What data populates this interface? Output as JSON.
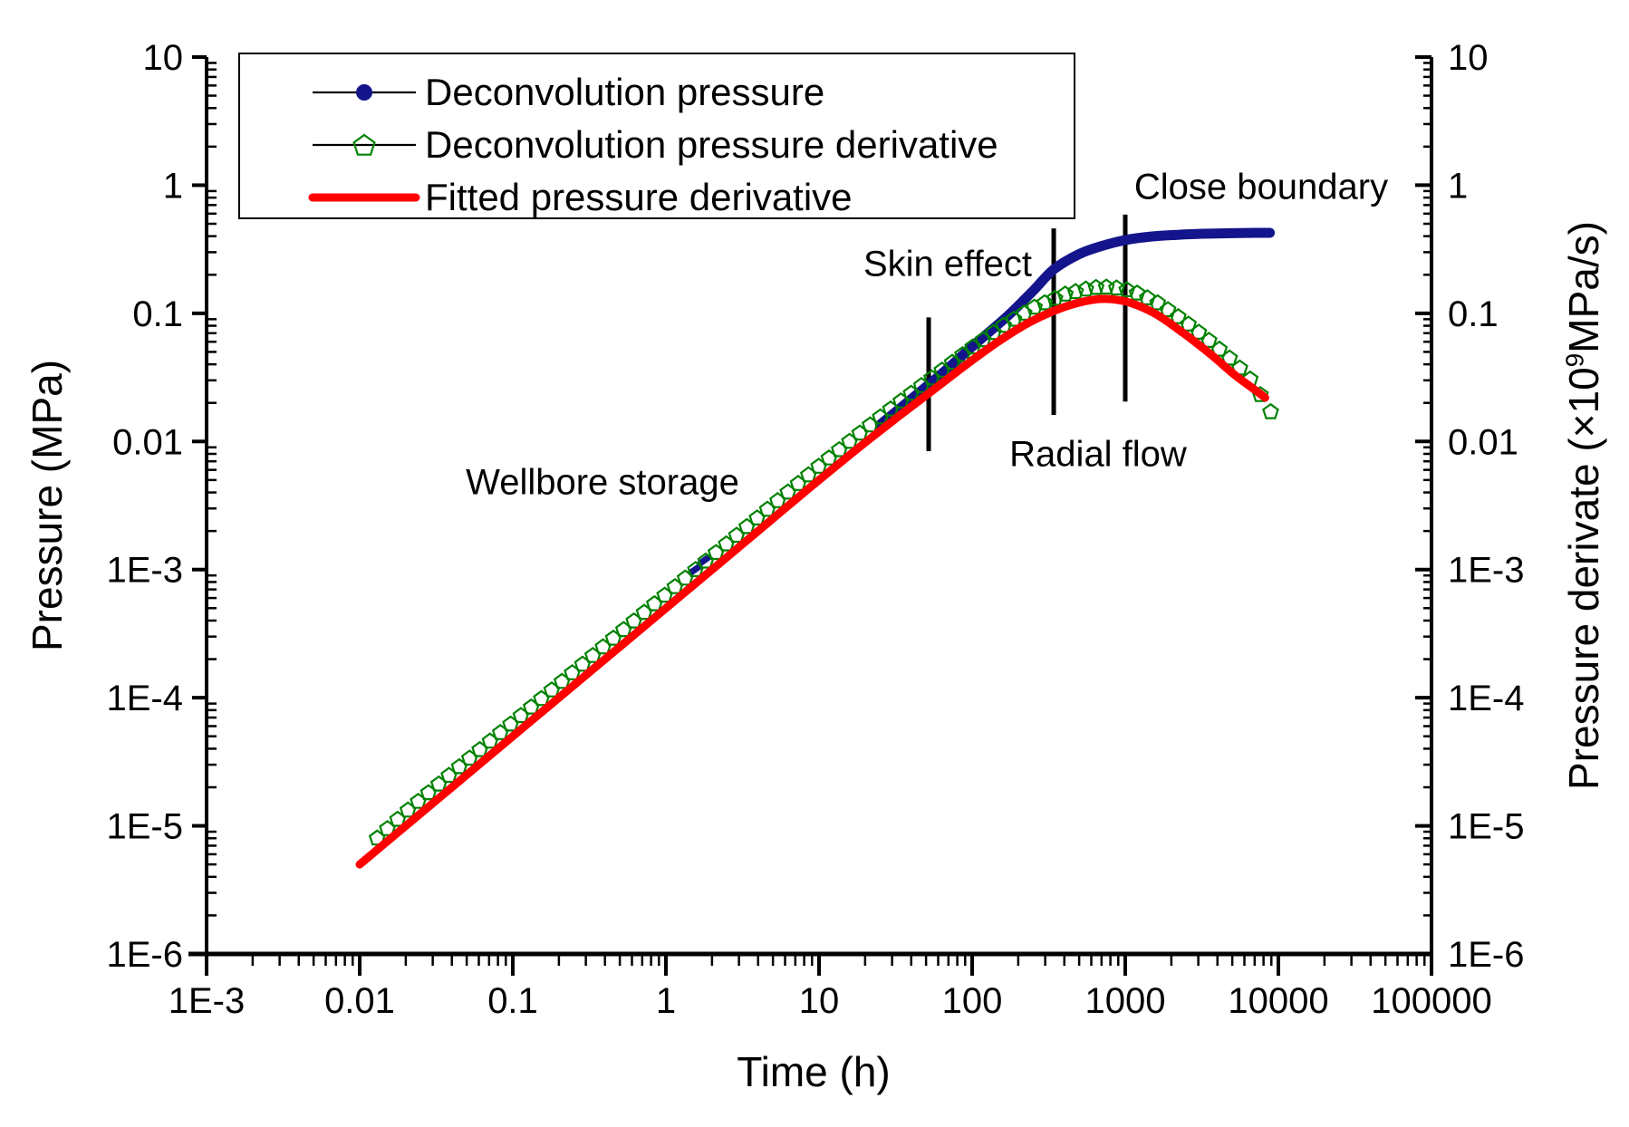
{
  "chart_data": {
    "type": "line",
    "title": "",
    "xlabel": "Time (h)",
    "ylabel_left": "Pressure (MPa)",
    "ylabel_right": {
      "pre": "Pressure derivate (×10",
      "sup": "9",
      "post": "MPa/s)"
    },
    "axes": {
      "x_log_range": [
        -3,
        5
      ],
      "y_log_range": [
        -6,
        1
      ],
      "x_ticks": [
        "1E-3",
        "0.01",
        "0.1",
        "1",
        "10",
        "100",
        "1000",
        "10000",
        "100000"
      ],
      "y_ticks_left": [
        "10",
        "1",
        "0.1",
        "0.01",
        "1E-3",
        "1E-4",
        "1E-5",
        "1E-6"
      ],
      "y_ticks_right": [
        "10",
        "1",
        "0.1",
        "0.01",
        "1E-3",
        "1E-4",
        "1E-5",
        "1E-6"
      ],
      "grid": false
    },
    "colors": {
      "pressure": "#14148C",
      "derivative": "#008200",
      "fitted": "#FF0000",
      "axis": "#000000"
    },
    "legend": {
      "position": "top-left",
      "entries": [
        {
          "label": "Deconvolution pressure",
          "marker": "dot-icon",
          "color": "#14148C"
        },
        {
          "label": "Deconvolution pressure derivative",
          "marker": "pentagon-icon",
          "color": "#008200"
        },
        {
          "label": "Fitted pressure derivative",
          "marker": "line-icon",
          "color": "#FF0000"
        }
      ]
    },
    "annotations": [
      {
        "label": "Wellbore storage",
        "t": 0.385,
        "v": 0.00475
      },
      {
        "label": "Skin effect",
        "t": 69,
        "v": 0.236
      },
      {
        "label": "Radial flow",
        "t": 665,
        "v": 0.0079
      },
      {
        "label": "Close boundary",
        "t": 7700,
        "v": 0.96
      }
    ],
    "boundary_lines": [
      {
        "t": 52,
        "v_bottom": 0.0084,
        "v_top": 0.093
      },
      {
        "t": 341,
        "v_bottom": 0.0161,
        "v_top": 0.46
      },
      {
        "t": 1000,
        "v_bottom": 0.0205,
        "v_top": 0.59
      }
    ],
    "series": [
      {
        "name": "Deconvolution pressure",
        "style": "thick-dotline",
        "color": "#14148C",
        "isolated_dashes": [
          [
            1.55,
            0.001
          ],
          [
            1.78,
            0.00118
          ]
        ],
        "points": [
          [
            25,
            0.0135
          ],
          [
            60,
            0.032
          ],
          [
            100,
            0.055
          ],
          [
            170,
            0.095
          ],
          [
            250,
            0.15
          ],
          [
            341,
            0.22
          ],
          [
            500,
            0.29
          ],
          [
            700,
            0.335
          ],
          [
            1000,
            0.373
          ],
          [
            1500,
            0.398
          ],
          [
            2200,
            0.41
          ],
          [
            3200,
            0.418
          ],
          [
            5000,
            0.422
          ],
          [
            7000,
            0.425
          ],
          [
            8800,
            0.425
          ]
        ]
      },
      {
        "name": "Deconvolution pressure derivative",
        "style": "pentagon-markers",
        "color": "#008200",
        "marker_count": 88,
        "t_start": 0.013,
        "t_end": 8900,
        "points": [
          [
            0.013,
            8e-06
          ],
          [
            0.02,
            1.28e-05
          ],
          [
            0.045,
            2.9e-05
          ],
          [
            0.1,
            6.4e-05
          ],
          [
            0.22,
            0.00014
          ],
          [
            0.5,
            0.00032
          ],
          [
            1,
            0.00064
          ],
          [
            2.2,
            0.0014
          ],
          [
            5,
            0.0032
          ],
          [
            10,
            0.0064
          ],
          [
            20,
            0.0125
          ],
          [
            35,
            0.021
          ],
          [
            60,
            0.034
          ],
          [
            100,
            0.054
          ],
          [
            160,
            0.08
          ],
          [
            250,
            0.11
          ],
          [
            400,
            0.14
          ],
          [
            600,
            0.158
          ],
          [
            800,
            0.16
          ],
          [
            1100,
            0.15
          ],
          [
            1600,
            0.122
          ],
          [
            2400,
            0.088
          ],
          [
            3600,
            0.06
          ],
          [
            5200,
            0.041
          ],
          [
            6800,
            0.029
          ],
          [
            8900,
            0.017
          ]
        ]
      },
      {
        "name": "Fitted pressure derivative",
        "style": "solid-line",
        "color": "#FF0000",
        "points": [
          [
            0.01,
            5e-06
          ],
          [
            0.02,
            1e-05
          ],
          [
            0.045,
            2.25e-05
          ],
          [
            0.1,
            5e-05
          ],
          [
            0.22,
            0.00011
          ],
          [
            0.5,
            0.00025
          ],
          [
            1,
            0.0005
          ],
          [
            2.2,
            0.0011
          ],
          [
            5,
            0.0025
          ],
          [
            10,
            0.005
          ],
          [
            20,
            0.0098
          ],
          [
            35,
            0.0165
          ],
          [
            60,
            0.027
          ],
          [
            100,
            0.043
          ],
          [
            160,
            0.064
          ],
          [
            250,
            0.088
          ],
          [
            400,
            0.112
          ],
          [
            600,
            0.127
          ],
          [
            800,
            0.129
          ],
          [
            1100,
            0.12
          ],
          [
            1600,
            0.098
          ],
          [
            2400,
            0.07
          ],
          [
            3600,
            0.048
          ],
          [
            5200,
            0.033
          ],
          [
            6800,
            0.026
          ],
          [
            8200,
            0.022
          ]
        ]
      }
    ]
  }
}
